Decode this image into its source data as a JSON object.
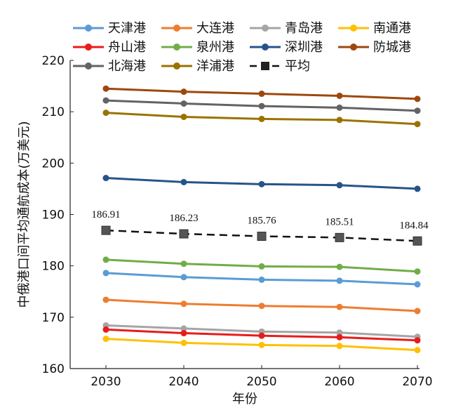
{
  "chart_data": {
    "type": "line",
    "title": "",
    "xlabel": "年份",
    "ylabel": "中俄港口间平均通航成本(万美元)",
    "x": [
      2030,
      2040,
      2050,
      2060,
      2070
    ],
    "ylim": [
      160,
      220
    ],
    "yticks": [
      160,
      170,
      180,
      190,
      200,
      210,
      220
    ],
    "grid": false,
    "legend_position": "top",
    "series": [
      {
        "name": "天津港",
        "color": "#5b9bd5",
        "marker": "circle",
        "dashed": false,
        "values": [
          178.6,
          177.8,
          177.3,
          177.1,
          176.4
        ]
      },
      {
        "name": "大连港",
        "color": "#ed7d31",
        "marker": "circle",
        "dashed": false,
        "values": [
          173.4,
          172.6,
          172.2,
          172.0,
          171.2
        ]
      },
      {
        "name": "青岛港",
        "color": "#a5a5a5",
        "marker": "circle",
        "dashed": false,
        "values": [
          168.4,
          167.8,
          167.2,
          167.0,
          166.2
        ]
      },
      {
        "name": "南通港",
        "color": "#ffc000",
        "marker": "circle",
        "dashed": false,
        "values": [
          165.8,
          165.0,
          164.6,
          164.4,
          163.6
        ]
      },
      {
        "name": "舟山港",
        "color": "#e81c1c",
        "marker": "circle",
        "dashed": false,
        "values": [
          167.6,
          166.9,
          166.4,
          166.1,
          165.5
        ]
      },
      {
        "name": "泉州港",
        "color": "#70ad47",
        "marker": "circle",
        "dashed": false,
        "values": [
          181.2,
          180.4,
          179.9,
          179.8,
          178.9
        ]
      },
      {
        "name": "深圳港",
        "color": "#26548a",
        "marker": "circle",
        "dashed": false,
        "values": [
          197.1,
          196.3,
          195.9,
          195.7,
          195.0
        ]
      },
      {
        "name": "防城港",
        "color": "#9e480e",
        "marker": "circle",
        "dashed": false,
        "values": [
          214.5,
          213.9,
          213.5,
          213.1,
          212.5
        ]
      },
      {
        "name": "北海港",
        "color": "#636363",
        "marker": "circle",
        "dashed": false,
        "values": [
          212.2,
          211.6,
          211.1,
          210.8,
          210.2
        ]
      },
      {
        "name": "洋浦港",
        "color": "#997300",
        "marker": "circle",
        "dashed": false,
        "values": [
          209.8,
          209.0,
          208.6,
          208.4,
          207.6
        ]
      },
      {
        "name": "平均",
        "color": "#111111",
        "marker": "square",
        "dashed": true,
        "values": [
          186.91,
          186.23,
          185.76,
          185.51,
          184.84
        ]
      }
    ],
    "data_labels": {
      "series": "平均",
      "labels": [
        "186.91",
        "186.23",
        "185.76",
        "185.51",
        "184.84"
      ]
    }
  }
}
